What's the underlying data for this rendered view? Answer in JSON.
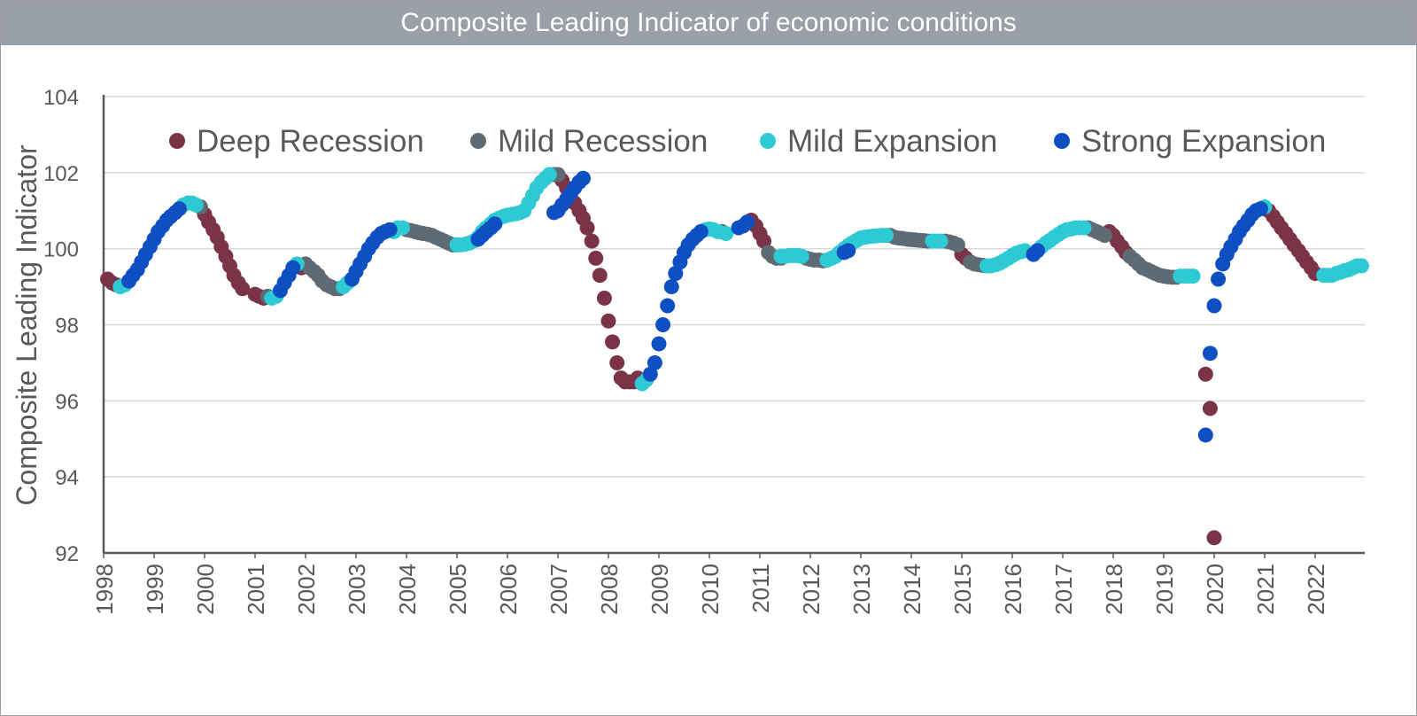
{
  "chart_data": {
    "type": "scatter",
    "title": "Composite Leading Indicator of economic conditions",
    "xlabel": "",
    "ylabel": "Composite Leading Indicator",
    "xlim": [
      1998.0,
      2023.0
    ],
    "ylim": [
      92,
      104
    ],
    "y_ticks": [
      "92",
      "94",
      "96",
      "98",
      "100",
      "102",
      "104"
    ],
    "x_ticks": [
      "1998",
      "1999",
      "2000",
      "2001",
      "2002",
      "2003",
      "2004",
      "2005",
      "2006",
      "2007",
      "2008",
      "2009",
      "2010",
      "2011",
      "2012",
      "2013",
      "2014",
      "2015",
      "2016",
      "2017",
      "2018",
      "2019",
      "2020",
      "2021",
      "2022"
    ],
    "grid": true,
    "legend_position": "top",
    "series": [
      {
        "name": "Deep Recession",
        "color": "#7b3447",
        "x": [
          1998.08,
          1998.17,
          1998.25,
          2000.0,
          2000.08,
          2000.17,
          2000.25,
          2000.33,
          2000.42,
          2000.5,
          2000.58,
          2000.67,
          2000.75,
          2001.0,
          2001.08,
          2001.17,
          2001.92,
          2007.08,
          2007.17,
          2007.25,
          2007.33,
          2007.42,
          2007.5,
          2007.58,
          2007.67,
          2007.75,
          2007.83,
          2007.92,
          2008.0,
          2008.08,
          2008.17,
          2008.25,
          2008.33,
          2008.42,
          2008.5,
          2008.58,
          2010.83,
          2010.92,
          2011.0,
          2011.08,
          2015.0,
          2015.08,
          2017.92,
          2018.0,
          2018.08,
          2018.17,
          2018.25,
          2019.83,
          2019.92,
          2020.0,
          2021.08,
          2021.17,
          2021.25,
          2021.33,
          2021.42,
          2021.5,
          2021.58,
          2021.67,
          2021.75,
          2021.83,
          2021.92,
          2022.0
        ],
        "y": [
          99.2,
          99.1,
          99.05,
          100.9,
          100.7,
          100.5,
          100.3,
          100.05,
          99.8,
          99.55,
          99.3,
          99.1,
          98.95,
          98.8,
          98.75,
          98.7,
          99.5,
          101.8,
          101.6,
          101.4,
          101.2,
          101.0,
          100.8,
          100.55,
          100.2,
          99.75,
          99.3,
          98.7,
          98.1,
          97.55,
          97.0,
          96.6,
          96.5,
          96.5,
          96.5,
          96.6,
          100.75,
          100.6,
          100.4,
          100.2,
          99.85,
          99.75,
          100.45,
          100.35,
          100.2,
          100.05,
          99.9,
          96.7,
          95.8,
          92.4,
          101.0,
          100.85,
          100.7,
          100.55,
          100.4,
          100.25,
          100.1,
          99.95,
          99.8,
          99.65,
          99.5,
          99.35
        ]
      },
      {
        "name": "Mild Recession",
        "color": "#5f6b74",
        "x": [
          1999.92,
          2001.25,
          2002.0,
          2002.08,
          2002.17,
          2002.25,
          2002.33,
          2002.42,
          2002.5,
          2002.58,
          2002.67,
          2004.0,
          2004.08,
          2004.17,
          2004.25,
          2004.33,
          2004.42,
          2004.5,
          2004.58,
          2004.67,
          2004.75,
          2004.83,
          2004.92,
          2006.92,
          2007.0,
          2010.25,
          2011.17,
          2011.25,
          2011.33,
          2011.42,
          2011.92,
          2012.0,
          2012.08,
          2012.17,
          2012.25,
          2013.58,
          2013.67,
          2013.75,
          2013.83,
          2013.92,
          2014.0,
          2014.08,
          2014.17,
          2014.25,
          2014.33,
          2014.67,
          2014.75,
          2014.83,
          2014.92,
          2015.17,
          2015.25,
          2015.33,
          2015.42,
          2017.5,
          2017.58,
          2017.67,
          2017.75,
          2017.83,
          2018.33,
          2018.42,
          2018.5,
          2018.58,
          2018.67,
          2018.75,
          2018.83,
          2018.92,
          2019.0,
          2019.08,
          2019.17,
          2019.25
        ],
        "y": [
          101.1,
          98.75,
          99.6,
          99.5,
          99.4,
          99.3,
          99.15,
          99.05,
          99.0,
          98.95,
          98.95,
          100.5,
          100.48,
          100.45,
          100.42,
          100.4,
          100.38,
          100.35,
          100.3,
          100.25,
          100.2,
          100.15,
          100.1,
          101.95,
          101.95,
          100.45,
          99.9,
          99.8,
          99.75,
          99.75,
          99.75,
          99.72,
          99.7,
          99.7,
          99.68,
          100.35,
          100.3,
          100.28,
          100.27,
          100.25,
          100.24,
          100.23,
          100.22,
          100.21,
          100.2,
          100.2,
          100.18,
          100.15,
          100.1,
          99.65,
          99.6,
          99.58,
          99.56,
          100.55,
          100.5,
          100.45,
          100.4,
          100.35,
          99.8,
          99.7,
          99.6,
          99.5,
          99.45,
          99.4,
          99.35,
          99.3,
          99.28,
          99.26,
          99.25,
          99.25
        ]
      },
      {
        "name": "Mild Expansion",
        "color": "#2ecad4",
        "x": [
          1998.33,
          1998.42,
          1999.58,
          1999.67,
          1999.75,
          1999.83,
          2001.33,
          2001.42,
          2001.83,
          2002.75,
          2002.83,
          2003.75,
          2003.83,
          2003.92,
          2005.0,
          2005.08,
          2005.17,
          2005.25,
          2005.33,
          2005.42,
          2005.5,
          2005.58,
          2005.67,
          2005.75,
          2005.83,
          2005.92,
          2006.0,
          2006.08,
          2006.17,
          2006.25,
          2006.33,
          2006.42,
          2006.5,
          2006.58,
          2006.67,
          2006.75,
          2006.83,
          2008.67,
          2008.75,
          2009.92,
          2010.0,
          2010.08,
          2010.17,
          2010.33,
          2011.42,
          2011.5,
          2011.58,
          2011.67,
          2011.75,
          2011.83,
          2012.33,
          2012.42,
          2012.5,
          2012.58,
          2012.67,
          2012.75,
          2012.83,
          2012.92,
          2013.0,
          2013.08,
          2013.17,
          2013.25,
          2013.33,
          2013.42,
          2013.5,
          2014.42,
          2014.5,
          2014.58,
          2015.5,
          2015.58,
          2015.67,
          2015.75,
          2015.83,
          2015.92,
          2016.0,
          2016.08,
          2016.17,
          2016.25,
          2016.58,
          2016.67,
          2016.75,
          2016.83,
          2016.92,
          2017.0,
          2017.08,
          2017.17,
          2017.25,
          2017.33,
          2017.42,
          2019.33,
          2019.42,
          2019.5,
          2019.58,
          2021.0,
          2022.17,
          2022.25,
          2022.33,
          2022.42,
          2022.5,
          2022.58,
          2022.67,
          2022.75,
          2022.83,
          2022.92
        ],
        "y": [
          99.0,
          99.05,
          101.15,
          101.2,
          101.2,
          101.15,
          98.7,
          98.75,
          99.6,
          99.0,
          99.1,
          100.45,
          100.55,
          100.55,
          100.1,
          100.1,
          100.12,
          100.15,
          100.2,
          100.3,
          100.45,
          100.55,
          100.65,
          100.75,
          100.8,
          100.85,
          100.88,
          100.9,
          100.92,
          100.95,
          101.0,
          101.2,
          101.4,
          101.6,
          101.75,
          101.85,
          101.95,
          96.45,
          96.55,
          100.5,
          100.52,
          100.5,
          100.45,
          100.4,
          99.8,
          99.8,
          99.82,
          99.82,
          99.82,
          99.8,
          99.7,
          99.75,
          99.8,
          99.9,
          100.0,
          100.08,
          100.15,
          100.22,
          100.28,
          100.3,
          100.32,
          100.33,
          100.34,
          100.35,
          100.35,
          100.2,
          100.2,
          100.2,
          99.55,
          99.55,
          99.58,
          99.62,
          99.68,
          99.75,
          99.82,
          99.88,
          99.92,
          99.95,
          100.05,
          100.15,
          100.22,
          100.3,
          100.38,
          100.45,
          100.5,
          100.52,
          100.55,
          100.55,
          100.55,
          99.28,
          99.28,
          99.28,
          99.28,
          101.1,
          99.3,
          99.3,
          99.3,
          99.35,
          99.38,
          99.42,
          99.45,
          99.5,
          99.55,
          99.55
        ]
      },
      {
        "name": "Strong Expansion",
        "color": "#0f4fc4",
        "x": [
          1998.5,
          1998.58,
          1998.67,
          1998.75,
          1998.83,
          1998.92,
          1999.0,
          1999.08,
          1999.17,
          1999.25,
          1999.33,
          1999.42,
          1999.5,
          2001.5,
          2001.58,
          2001.67,
          2001.75,
          2002.92,
          2003.0,
          2003.08,
          2003.17,
          2003.25,
          2003.33,
          2003.42,
          2003.5,
          2003.58,
          2003.67,
          2005.42,
          2005.5,
          2005.58,
          2005.67,
          2005.75,
          2006.92,
          2007.0,
          2007.08,
          2007.17,
          2007.25,
          2007.33,
          2007.42,
          2007.5,
          2008.83,
          2008.92,
          2009.0,
          2009.08,
          2009.17,
          2009.25,
          2009.33,
          2009.42,
          2009.5,
          2009.58,
          2009.67,
          2009.75,
          2009.83,
          2010.58,
          2010.67,
          2010.75,
          2012.67,
          2012.75,
          2016.42,
          2016.5,
          2019.83,
          2019.92,
          2020.0,
          2020.08,
          2020.17,
          2020.25,
          2020.33,
          2020.42,
          2020.5,
          2020.58,
          2020.67,
          2020.75,
          2020.83,
          2020.92
        ],
        "y": [
          99.15,
          99.3,
          99.45,
          99.65,
          99.85,
          100.05,
          100.25,
          100.45,
          100.6,
          100.75,
          100.85,
          100.95,
          101.05,
          98.9,
          99.1,
          99.3,
          99.5,
          99.2,
          99.4,
          99.6,
          99.8,
          100.0,
          100.15,
          100.3,
          100.4,
          100.45,
          100.5,
          100.25,
          100.35,
          100.45,
          100.55,
          100.65,
          100.95,
          101.0,
          101.15,
          101.3,
          101.45,
          101.6,
          101.75,
          101.85,
          96.7,
          97.0,
          97.5,
          98.0,
          98.5,
          99.0,
          99.35,
          99.65,
          99.9,
          100.1,
          100.25,
          100.35,
          100.45,
          100.55,
          100.6,
          100.7,
          99.9,
          99.95,
          99.85,
          99.95,
          95.1,
          97.25,
          98.5,
          99.2,
          99.6,
          99.85,
          100.05,
          100.25,
          100.45,
          100.6,
          100.75,
          100.9,
          101.0,
          101.05
        ]
      }
    ]
  }
}
